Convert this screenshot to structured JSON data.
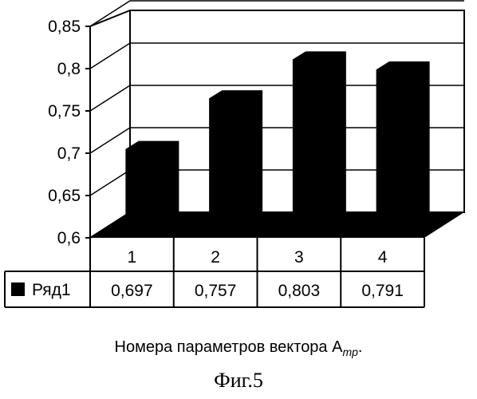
{
  "chart_data": {
    "type": "bar",
    "categories": [
      "1",
      "2",
      "3",
      "4"
    ],
    "series": [
      {
        "name": "Ряд1",
        "values": [
          0.697,
          0.757,
          0.803,
          0.791
        ],
        "value_labels": [
          "0,697",
          "0,757",
          "0,803",
          "0,791"
        ],
        "color": "#000000"
      }
    ],
    "ylim": [
      0.6,
      0.85
    ],
    "yticks": [
      0.6,
      0.65,
      0.7,
      0.75,
      0.8,
      0.85
    ],
    "ytick_labels": [
      "0,6",
      "0,65",
      "0,7",
      "0,75",
      "0,8",
      "0,85"
    ],
    "xlabel": "Номера параметров вектора A",
    "xlabel_subscript": "mp",
    "xlabel_suffix": ".",
    "grid": true,
    "style": "3d",
    "legend_placement": "data-table"
  },
  "figure_label": "Фиг.5"
}
